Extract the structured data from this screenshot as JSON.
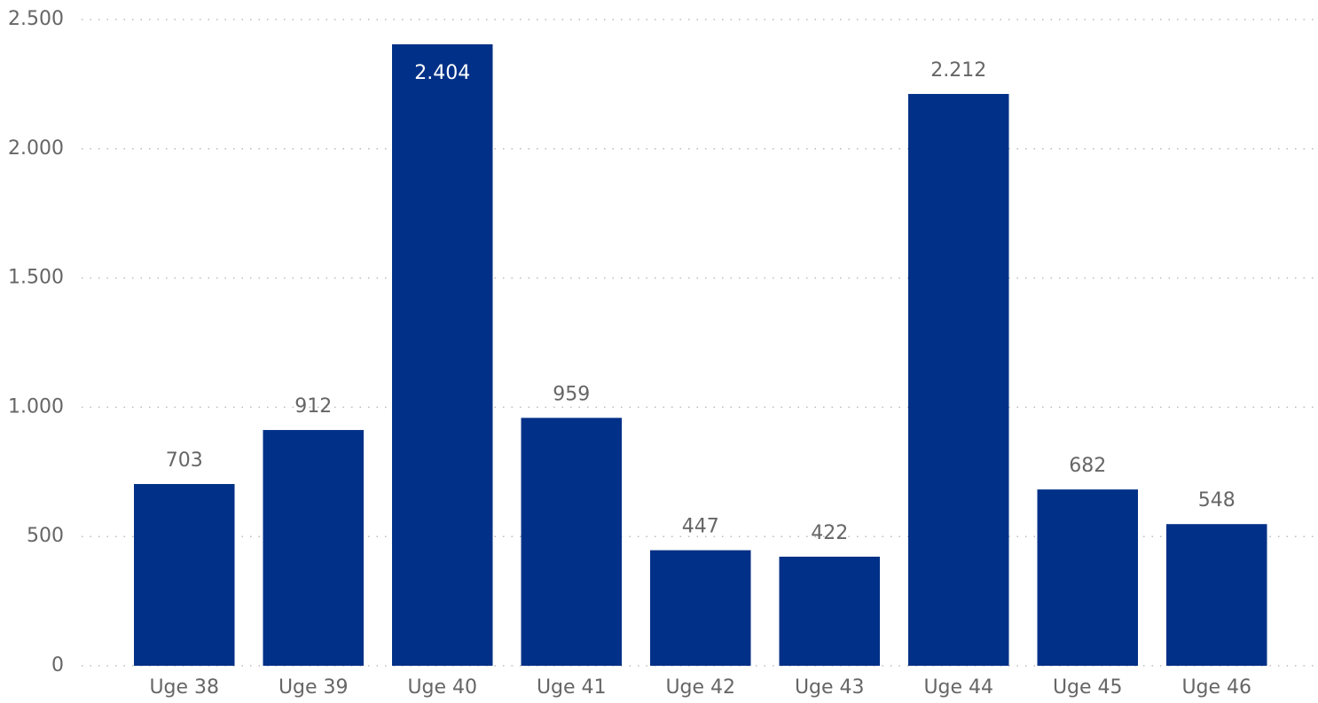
{
  "chart_data": {
    "type": "bar",
    "categories": [
      "Uge 38",
      "Uge 39",
      "Uge 40",
      "Uge 41",
      "Uge 42",
      "Uge 43",
      "Uge 44",
      "Uge 45",
      "Uge 46"
    ],
    "values": [
      703,
      912,
      2404,
      959,
      447,
      422,
      2212,
      682,
      548
    ],
    "value_labels": [
      "703",
      "912",
      "2.404",
      "959",
      "447",
      "422",
      "2.212",
      "682",
      "548"
    ],
    "color": "#003087",
    "ylim": [
      0,
      2500
    ],
    "yticks": [
      0,
      500,
      {
        "value": 1000,
        "label": "1.000"
      },
      {
        "value": 1500,
        "label": "1.500"
      },
      {
        "value": 2000,
        "label": "2.000"
      },
      {
        "value": 2500,
        "label": "2.500"
      }
    ],
    "grid": true
  }
}
